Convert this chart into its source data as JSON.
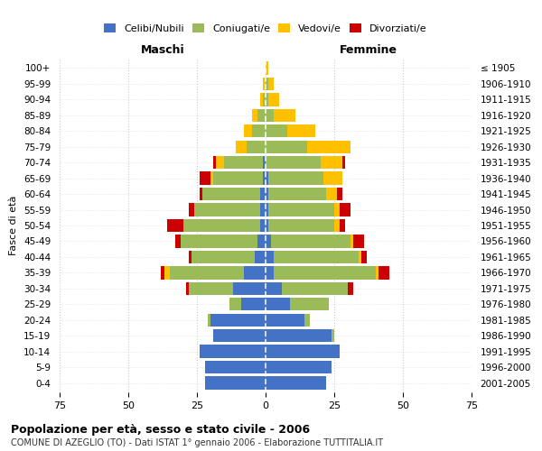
{
  "age_groups": [
    "0-4",
    "5-9",
    "10-14",
    "15-19",
    "20-24",
    "25-29",
    "30-34",
    "35-39",
    "40-44",
    "45-49",
    "50-54",
    "55-59",
    "60-64",
    "65-69",
    "70-74",
    "75-79",
    "80-84",
    "85-89",
    "90-94",
    "95-99",
    "100+"
  ],
  "birth_years": [
    "2001-2005",
    "1996-2000",
    "1991-1995",
    "1986-1990",
    "1981-1985",
    "1976-1980",
    "1971-1975",
    "1966-1970",
    "1961-1965",
    "1956-1960",
    "1951-1955",
    "1946-1950",
    "1941-1945",
    "1936-1940",
    "1931-1935",
    "1926-1930",
    "1921-1925",
    "1916-1920",
    "1911-1915",
    "1906-1910",
    "≤ 1905"
  ],
  "male": {
    "celibe": [
      22,
      22,
      24,
      19,
      20,
      9,
      12,
      8,
      4,
      3,
      2,
      2,
      2,
      1,
      1,
      0,
      0,
      0,
      0,
      0,
      0
    ],
    "coniugato": [
      0,
      0,
      0,
      0,
      1,
      4,
      16,
      27,
      23,
      28,
      28,
      24,
      21,
      18,
      14,
      7,
      5,
      3,
      1,
      0,
      0
    ],
    "vedovo": [
      0,
      0,
      0,
      0,
      0,
      0,
      0,
      2,
      0,
      0,
      0,
      0,
      0,
      1,
      3,
      4,
      3,
      2,
      1,
      1,
      0
    ],
    "divorziato": [
      0,
      0,
      0,
      0,
      0,
      0,
      1,
      1,
      1,
      2,
      6,
      2,
      1,
      4,
      1,
      0,
      0,
      0,
      0,
      0,
      0
    ]
  },
  "female": {
    "nubile": [
      22,
      24,
      27,
      24,
      14,
      9,
      6,
      3,
      3,
      2,
      1,
      1,
      1,
      1,
      0,
      0,
      0,
      0,
      0,
      0,
      0
    ],
    "coniugata": [
      0,
      0,
      0,
      1,
      2,
      14,
      24,
      37,
      31,
      29,
      24,
      24,
      21,
      20,
      20,
      15,
      8,
      3,
      1,
      1,
      0
    ],
    "vedova": [
      0,
      0,
      0,
      0,
      0,
      0,
      0,
      1,
      1,
      1,
      2,
      2,
      4,
      7,
      8,
      16,
      10,
      8,
      4,
      2,
      1
    ],
    "divorziata": [
      0,
      0,
      0,
      0,
      0,
      0,
      2,
      4,
      2,
      4,
      2,
      4,
      2,
      0,
      1,
      0,
      0,
      0,
      0,
      0,
      0
    ]
  },
  "colors": {
    "celibe": "#4472C4",
    "coniugato": "#9BBB59",
    "vedovo": "#FFC000",
    "divorziato": "#CC0000"
  },
  "title": "Popolazione per età, sesso e stato civile - 2006",
  "subtitle": "COMUNE DI AZEGLIO (TO) - Dati ISTAT 1° gennaio 2006 - Elaborazione TUTTITALIA.IT",
  "xlabel_left": "Maschi",
  "xlabel_right": "Femmine",
  "ylabel": "Fasce di età",
  "xlim": 75,
  "legend_labels": [
    "Celibi/Nubili",
    "Coniugati/e",
    "Vedovi/e",
    "Divorziati/e"
  ],
  "background_color": "#ffffff",
  "grid_color": "#cccccc"
}
